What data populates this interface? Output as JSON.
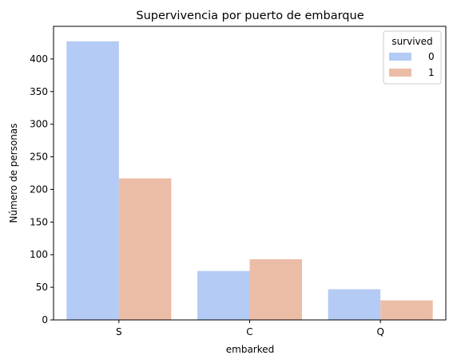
{
  "chart_data": {
    "type": "bar",
    "title": "Supervivencia por puerto de embarque",
    "xlabel": "embarked",
    "ylabel": "Número de personas",
    "categories": [
      "S",
      "C",
      "Q"
    ],
    "series": [
      {
        "name": "0",
        "values": [
          427,
          75,
          47
        ],
        "color": "#b3cbf5"
      },
      {
        "name": "1",
        "values": [
          217,
          93,
          30
        ],
        "color": "#ecbda6"
      }
    ],
    "ylim": [
      0,
      450
    ],
    "yticks": [
      0,
      50,
      100,
      150,
      200,
      250,
      300,
      350,
      400
    ],
    "grid": false,
    "legend": {
      "title": "survived",
      "position": "top-right"
    }
  }
}
